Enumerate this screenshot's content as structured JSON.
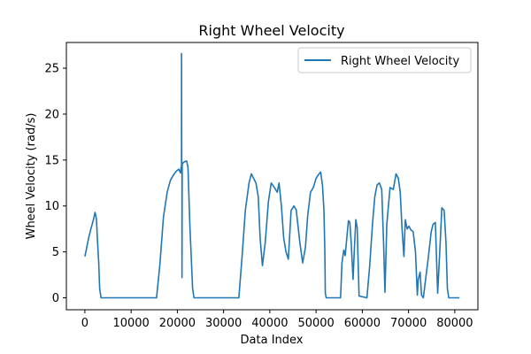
{
  "chart_data": {
    "type": "line",
    "title": "Right Wheel Velocity",
    "xlabel": "Data Index",
    "ylabel": "Wheel Velocity (rad/s)",
    "xlim": [
      -4000,
      85000
    ],
    "ylim": [
      -1.3,
      27.8
    ],
    "xticks": [
      0,
      10000,
      20000,
      30000,
      40000,
      50000,
      60000,
      70000,
      80000
    ],
    "yticks": [
      0,
      5,
      10,
      15,
      20,
      25
    ],
    "grid": false,
    "legend_position": "top-right",
    "series": [
      {
        "name": "Right Wheel Velocity",
        "color": "#1f77b4",
        "x": [
          0,
          300,
          800,
          1300,
          1800,
          2200,
          2500,
          2700,
          3000,
          3200,
          3500,
          15500,
          16200,
          17000,
          17800,
          18500,
          19200,
          19800,
          20300,
          20700,
          20800,
          20900,
          20905,
          20950,
          21000,
          21005,
          21050,
          21500,
          22000,
          22300,
          22700,
          23300,
          23600,
          33300,
          34000,
          34700,
          35500,
          36000,
          36500,
          37000,
          37500,
          37900,
          38400,
          39000,
          39700,
          40300,
          41000,
          41600,
          42000,
          42500,
          43000,
          43500,
          44000,
          44600,
          45200,
          45700,
          46500,
          47100,
          47700,
          48200,
          48800,
          49400,
          50000,
          50500,
          51000,
          51400,
          51700,
          51900,
          52000,
          52200,
          55300,
          55600,
          56000,
          56300,
          56700,
          57000,
          57300,
          57600,
          58000,
          58300,
          58600,
          58900,
          59300,
          61000,
          61600,
          62200,
          62700,
          63200,
          63700,
          64200,
          64600,
          64900,
          65300,
          66000,
          66700,
          67300,
          67800,
          68200,
          68600,
          69000,
          69300,
          69700,
          70100,
          70500,
          71000,
          71500,
          71900,
          72100,
          72500,
          72800,
          73200,
          74300,
          74900,
          75300,
          75800,
          76300,
          76800,
          77200,
          77700,
          78100,
          78400,
          78700,
          80000,
          81000
        ],
        "values": [
          4.5,
          5.2,
          6.5,
          7.5,
          8.4,
          9.3,
          8.6,
          6.5,
          3.8,
          1.0,
          0.0,
          0.0,
          3.5,
          8.8,
          11.5,
          12.8,
          13.4,
          13.8,
          14.0,
          13.6,
          14.2,
          14.3,
          26.6,
          14.5,
          14.6,
          2.2,
          14.6,
          14.8,
          14.9,
          14.2,
          8.0,
          1.0,
          0.0,
          0.0,
          4.5,
          9.5,
          12.5,
          13.5,
          13.0,
          12.5,
          11.0,
          6.5,
          3.5,
          6.0,
          10.5,
          12.5,
          12.0,
          11.5,
          12.5,
          10.0,
          6.5,
          5.0,
          4.2,
          9.5,
          10.0,
          9.6,
          6.0,
          3.8,
          5.5,
          9.0,
          11.5,
          12.0,
          13.0,
          13.4,
          13.7,
          12.2,
          9.5,
          5.0,
          0.5,
          0.0,
          0.0,
          3.8,
          5.2,
          4.6,
          6.8,
          8.4,
          8.2,
          6.0,
          2.0,
          5.5,
          8.5,
          7.6,
          0.2,
          0.0,
          3.5,
          8.0,
          11.0,
          12.3,
          12.5,
          11.8,
          6.0,
          0.6,
          8.0,
          12.0,
          11.8,
          13.5,
          13.0,
          11.5,
          7.5,
          4.5,
          8.5,
          7.5,
          7.8,
          7.4,
          7.2,
          5.0,
          0.3,
          2.0,
          2.8,
          0.3,
          0.0,
          4.5,
          7.2,
          8.0,
          8.2,
          0.5,
          5.5,
          9.8,
          9.5,
          6.0,
          1.0,
          0.0,
          0.0,
          0.0
        ]
      }
    ]
  }
}
